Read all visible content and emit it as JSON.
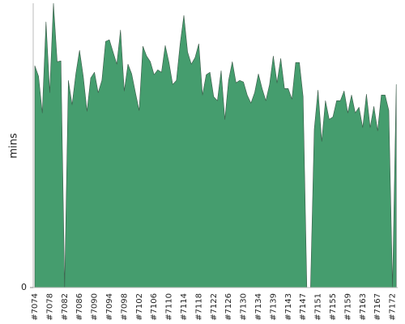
{
  "chart_data": {
    "type": "area",
    "y_label": "mins",
    "categories": [
      "#7074",
      null,
      null,
      null,
      "#7078",
      null,
      null,
      null,
      "#7082",
      null,
      null,
      null,
      "#7086",
      null,
      null,
      null,
      "#7090",
      null,
      null,
      null,
      "#7094",
      null,
      null,
      null,
      "#7098",
      null,
      null,
      null,
      "#7102",
      null,
      null,
      null,
      "#7106",
      null,
      null,
      null,
      "#7110",
      null,
      null,
      null,
      "#7114",
      null,
      null,
      null,
      "#7118",
      null,
      null,
      null,
      "#7122",
      null,
      null,
      null,
      "#7126",
      null,
      null,
      null,
      "#7130",
      null,
      null,
      null,
      "#7134",
      null,
      null,
      null,
      "#7139",
      null,
      null,
      null,
      "#7143",
      null,
      null,
      null,
      "#7147",
      null,
      null,
      null,
      "#7151",
      null,
      null,
      null,
      "#7155",
      null,
      null,
      null,
      "#7159",
      null,
      null,
      null,
      "#7163",
      null,
      null,
      null,
      "#7167",
      null,
      null,
      null,
      "#7172",
      null
    ],
    "values": [
      27.3,
      26.0,
      21.5,
      32.7,
      24.0,
      35.0,
      27.8,
      27.9,
      0,
      25.5,
      22.5,
      26.3,
      29.2,
      26.0,
      21.7,
      25.8,
      26.5,
      24.0,
      25.5,
      30.3,
      30.5,
      29.0,
      27.5,
      31.7,
      24.2,
      27.5,
      26.3,
      24.0,
      21.8,
      29.7,
      28.5,
      27.8,
      26.2,
      26.8,
      26.5,
      29.8,
      27.7,
      25.0,
      25.5,
      30.0,
      33.5,
      29.0,
      27.5,
      28.3,
      30.0,
      23.7,
      26.2,
      26.5,
      23.5,
      23.0,
      26.7,
      20.7,
      25.5,
      27.8,
      25.2,
      25.5,
      25.3,
      23.7,
      22.7,
      24.0,
      26.3,
      24.5,
      23.0,
      25.0,
      28.5,
      25.2,
      28.2,
      24.5,
      24.5,
      23.2,
      27.7,
      27.7,
      23.5,
      0,
      0,
      19.5,
      24.3,
      18.0,
      23.0,
      20.7,
      21.0,
      23.0,
      23.0,
      24.2,
      21.5,
      23.7,
      21.5,
      22.2,
      19.7,
      23.8,
      19.7,
      22.3,
      19.3,
      23.7,
      23.7,
      21.8,
      0,
      25.0
    ],
    "color": "#459d6e",
    "ylim": [
      0,
      35
    ],
    "yticks": [
      0
    ]
  }
}
